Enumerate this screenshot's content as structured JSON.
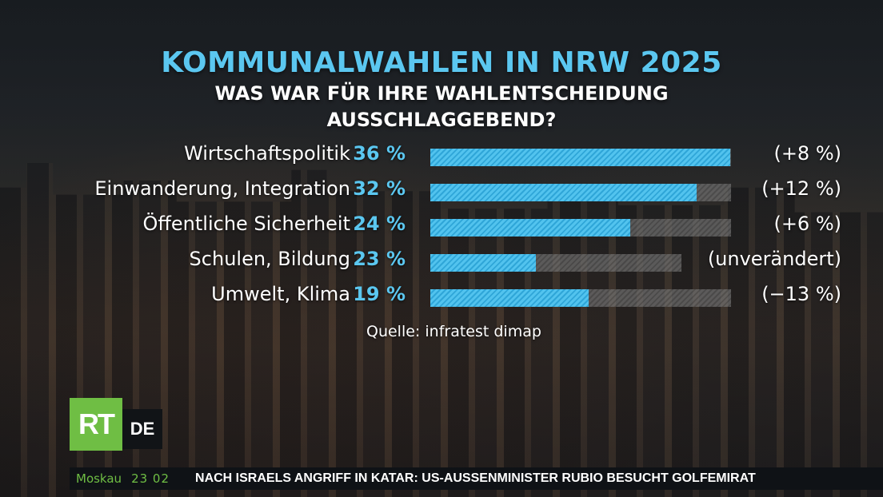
{
  "chart_data": {
    "type": "bar",
    "title": "KOMMUNALWAHLEN IN NRW 2025",
    "subtitle_lines": [
      "WAS WAR FÜR IHRE WAHLENTSCHEIDUNG",
      "AUSSCHLAGGEBEND?"
    ],
    "categories": [
      "Wirtschaftspolitik",
      "Einwanderung, Integration",
      "Öffentliche Sicherheit",
      "Schulen, Bildung",
      "Umwelt, Klima"
    ],
    "values": [
      36,
      32,
      24,
      23,
      19
    ],
    "value_labels": [
      "36 %",
      "32 %",
      "24 %",
      "23 %",
      "19 %"
    ],
    "changes": [
      "(+8 %)",
      "(+12 %)",
      "(+6 %)",
      "(unverändert)",
      "(−13 %)"
    ],
    "source": "Quelle: infratest dimap",
    "colors": {
      "fill": "#52c3ee",
      "track": "#7a7a7a",
      "title": "#5bc7f0"
    }
  },
  "branding": {
    "logo_rt": "RT",
    "logo_de": "DE",
    "rt_color": "#6fbe44"
  },
  "ticker": {
    "city": "Moskau",
    "time": "23 02",
    "headline": "NACH ISRAELS ANGRIFF IN KATAR: US-AUSSENMINISTER RUBIO BESUCHT GOLFEMIRAT"
  }
}
